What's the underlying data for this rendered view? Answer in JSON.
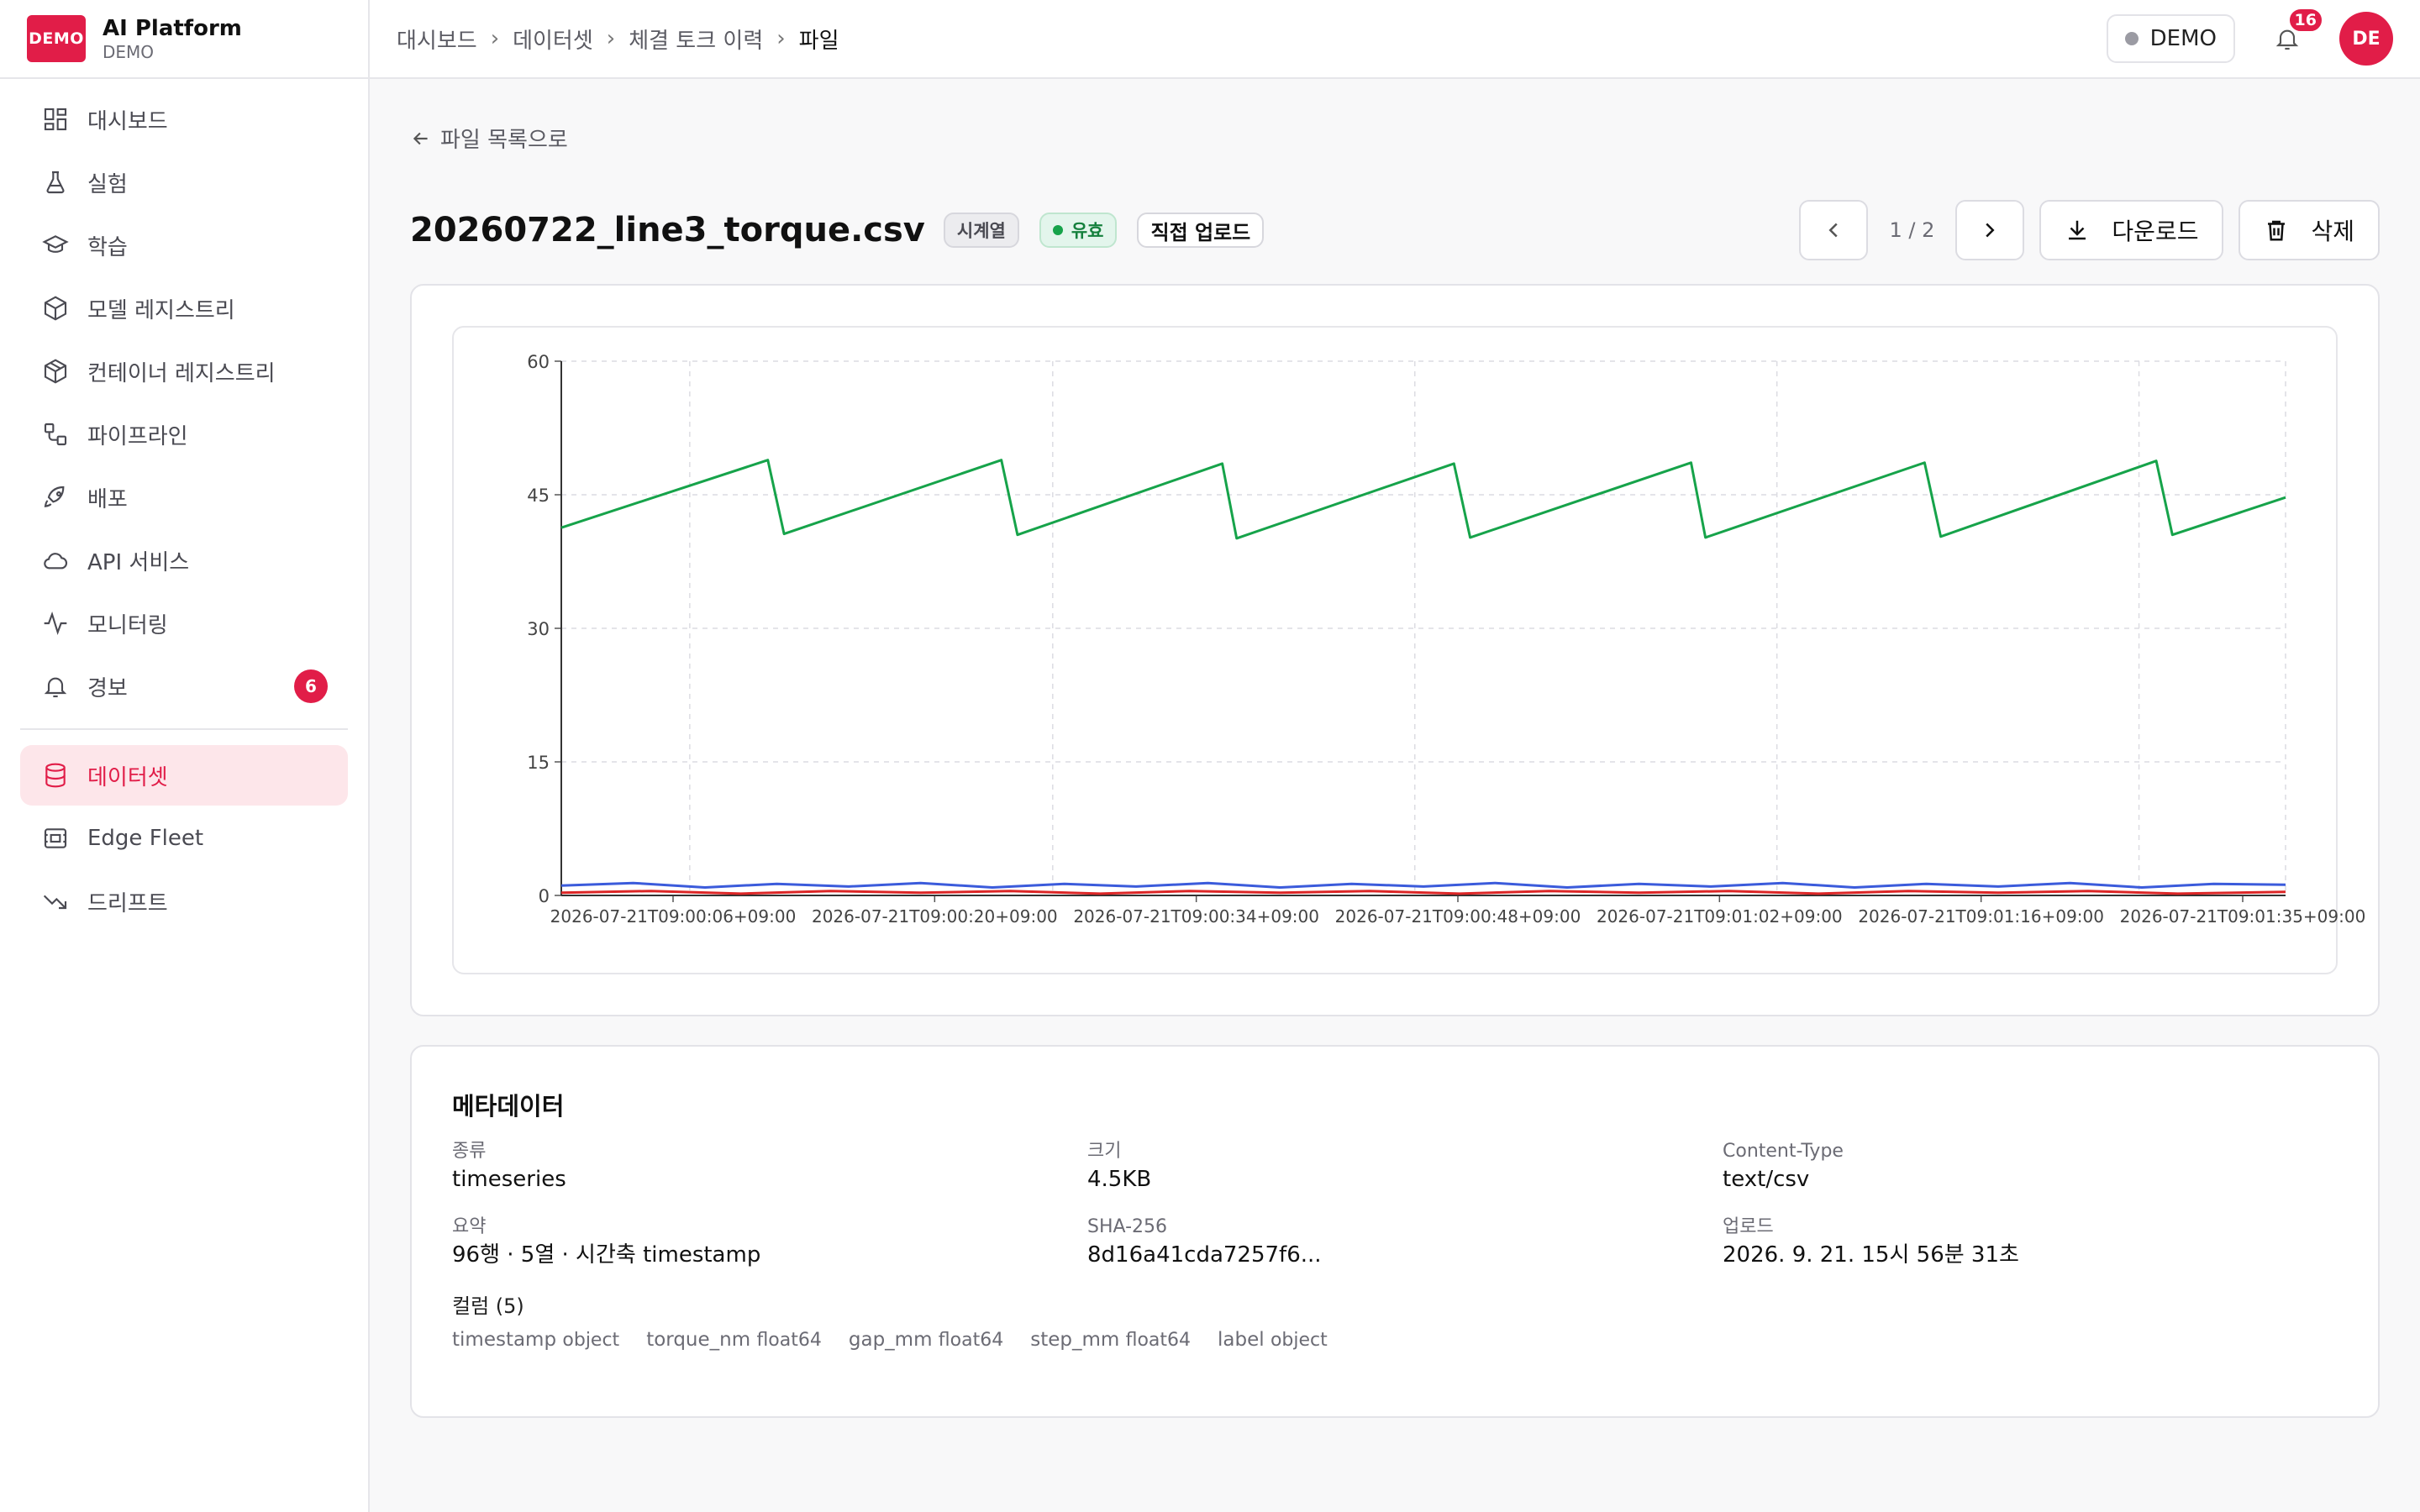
{
  "brand": {
    "logo": "DEMO",
    "title": "AI Platform",
    "subtitle": "DEMO"
  },
  "sidebar": {
    "items": [
      {
        "label": "대시보드",
        "icon": "dashboard-icon"
      },
      {
        "label": "실험",
        "icon": "flask-icon"
      },
      {
        "label": "학습",
        "icon": "graduation-cap-icon"
      },
      {
        "label": "모델 레지스트리",
        "icon": "cube-icon"
      },
      {
        "label": "컨테이너 레지스트리",
        "icon": "container-icon"
      },
      {
        "label": "파이프라인",
        "icon": "pipeline-icon"
      },
      {
        "label": "배포",
        "icon": "rocket-icon"
      },
      {
        "label": "API 서비스",
        "icon": "cloud-icon"
      },
      {
        "label": "모니터링",
        "icon": "activity-icon"
      },
      {
        "label": "경보",
        "icon": "bell-icon",
        "badge": "6"
      }
    ],
    "bottom_items": [
      {
        "label": "데이터셋",
        "icon": "database-icon",
        "active": true
      },
      {
        "label": "Edge Fleet",
        "icon": "edge-device-icon"
      },
      {
        "label": "드리프트",
        "icon": "trending-down-icon"
      }
    ]
  },
  "header": {
    "breadcrumb": [
      "대시보드",
      "데이터셋",
      "체결 토크 이력",
      "파일"
    ],
    "env_chip": "DEMO",
    "notification_count": "16",
    "avatar_initials": "DE"
  },
  "page": {
    "back_label": "파일 목록으로",
    "file_name": "20260722_line3_torque.csv",
    "tag_type": "시계열",
    "tag_status": "유효",
    "tag_source": "직접 업로드",
    "pager": "1 / 2",
    "download_label": "다운로드",
    "delete_label": "삭제"
  },
  "chart_data": {
    "type": "line",
    "title": "",
    "xlabel": "",
    "ylabel": "",
    "ylim": [
      0,
      60
    ],
    "yticks": [
      0,
      15,
      30,
      45,
      60
    ],
    "xticks": [
      "2026-07-21T09:00:06+09:00",
      "2026-07-21T09:00:20+09:00",
      "2026-07-21T09:00:34+09:00",
      "2026-07-21T09:00:48+09:00",
      "2026-07-21T09:01:02+09:00",
      "2026-07-21T09:01:16+09:00",
      "2026-07-21T09:01:35+09:00"
    ],
    "x_range_seconds": [
      0,
      96
    ],
    "grid": true,
    "series": [
      {
        "color": "#16a34a",
        "values": [
          [
            0,
            41.3
          ],
          [
            11.5,
            48.9
          ],
          [
            12.4,
            40.6
          ],
          [
            24.5,
            48.9
          ],
          [
            25.4,
            40.5
          ],
          [
            36.8,
            48.5
          ],
          [
            37.6,
            40.1
          ],
          [
            49.7,
            48.5
          ],
          [
            50.6,
            40.2
          ],
          [
            62.9,
            48.6
          ],
          [
            63.7,
            40.2
          ],
          [
            75.9,
            48.6
          ],
          [
            76.8,
            40.3
          ],
          [
            88.8,
            48.8
          ],
          [
            89.7,
            40.5
          ],
          [
            96,
            44.7
          ]
        ]
      },
      {
        "color": "#3b5bdb",
        "values": [
          [
            0,
            1.1
          ],
          [
            4,
            1.4
          ],
          [
            8,
            0.9
          ],
          [
            12,
            1.3
          ],
          [
            16,
            1.0
          ],
          [
            20,
            1.4
          ],
          [
            24,
            0.9
          ],
          [
            28,
            1.3
          ],
          [
            32,
            1.0
          ],
          [
            36,
            1.4
          ],
          [
            40,
            0.9
          ],
          [
            44,
            1.3
          ],
          [
            48,
            1.0
          ],
          [
            52,
            1.4
          ],
          [
            56,
            0.9
          ],
          [
            60,
            1.3
          ],
          [
            64,
            1.0
          ],
          [
            68,
            1.4
          ],
          [
            72,
            0.9
          ],
          [
            76,
            1.3
          ],
          [
            80,
            1.0
          ],
          [
            84,
            1.4
          ],
          [
            88,
            0.9
          ],
          [
            92,
            1.3
          ],
          [
            96,
            1.2
          ]
        ]
      },
      {
        "color": "#dc2626",
        "values": [
          [
            0,
            0.3
          ],
          [
            5,
            0.5
          ],
          [
            10,
            0.2
          ],
          [
            15,
            0.5
          ],
          [
            20,
            0.3
          ],
          [
            25,
            0.5
          ],
          [
            30,
            0.2
          ],
          [
            35,
            0.5
          ],
          [
            40,
            0.3
          ],
          [
            45,
            0.5
          ],
          [
            50,
            0.2
          ],
          [
            55,
            0.5
          ],
          [
            60,
            0.3
          ],
          [
            65,
            0.5
          ],
          [
            70,
            0.2
          ],
          [
            75,
            0.5
          ],
          [
            80,
            0.3
          ],
          [
            85,
            0.5
          ],
          [
            90,
            0.2
          ],
          [
            96,
            0.4
          ]
        ]
      }
    ]
  },
  "metadata": {
    "title": "메타데이터",
    "fields": [
      {
        "label": "종류",
        "value": "timeseries"
      },
      {
        "label": "크기",
        "value": "4.5KB"
      },
      {
        "label": "Content-Type",
        "value": "text/csv"
      },
      {
        "label": "요약",
        "value": "96행 · 5열 · 시간축 timestamp"
      },
      {
        "label": "SHA-256",
        "value": "8d16a41cda7257f6..."
      },
      {
        "label": "업로드",
        "value": "2026. 9. 21. 15시 56분 31초"
      }
    ],
    "columns_label": "컬럼 (5)",
    "columns": [
      {
        "name": "timestamp",
        "type": "object"
      },
      {
        "name": "torque_nm",
        "type": "float64"
      },
      {
        "name": "gap_mm",
        "type": "float64"
      },
      {
        "name": "step_mm",
        "type": "float64"
      },
      {
        "name": "label",
        "type": "object"
      }
    ]
  }
}
